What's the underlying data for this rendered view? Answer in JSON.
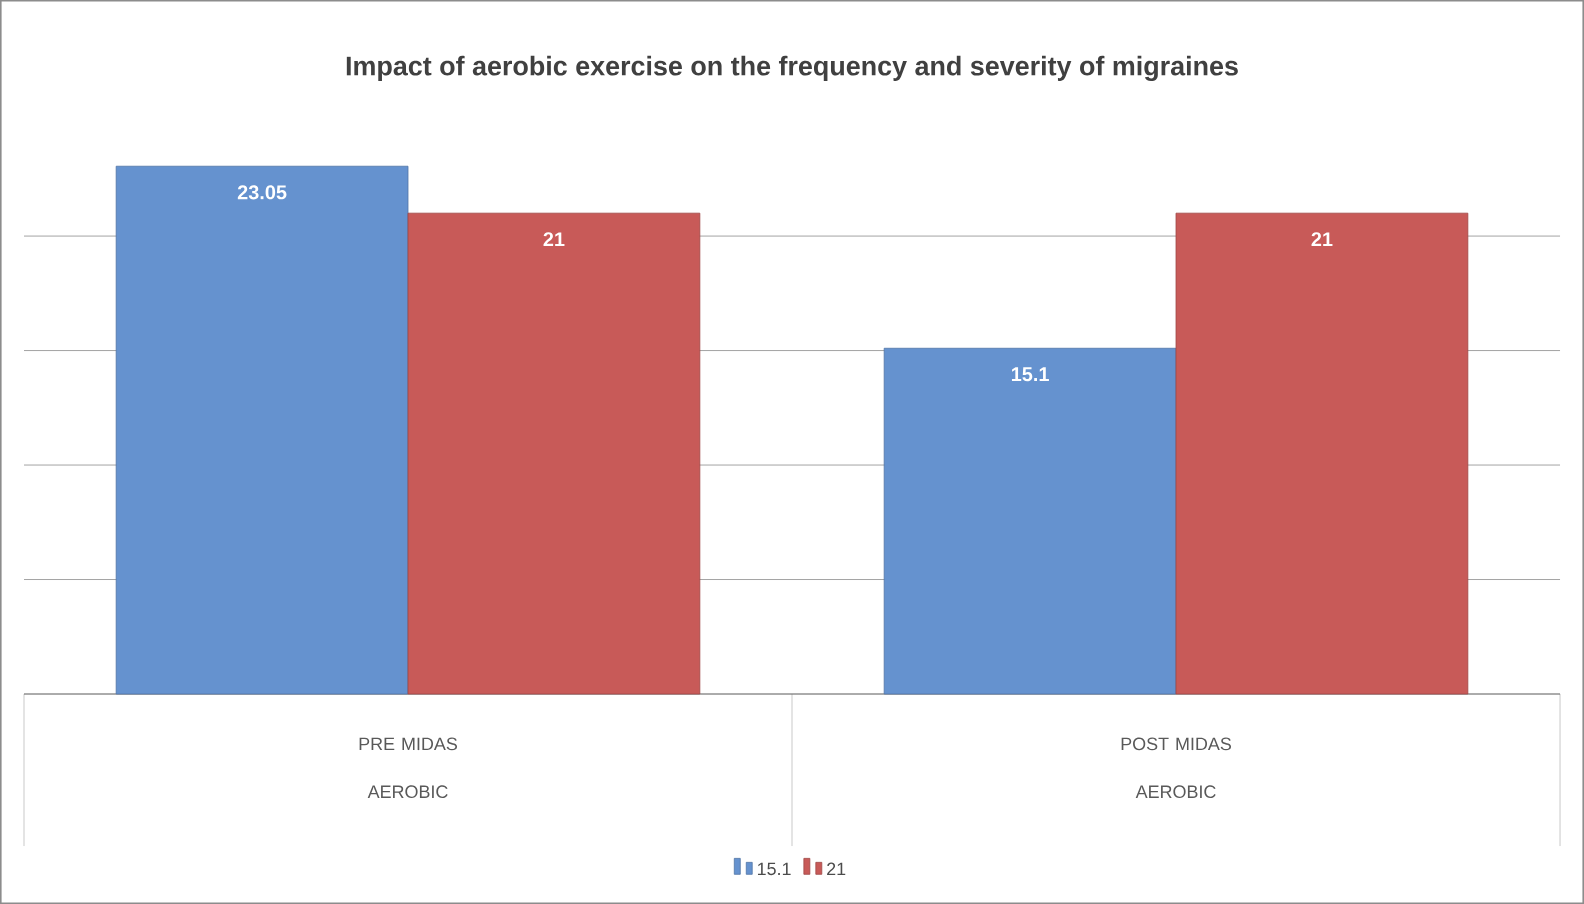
{
  "chart_data": {
    "type": "bar",
    "title": "Impact of aerobic exercise on the frequency and severity of migraines",
    "categories": [
      "PRE MIDAS AEROBIC",
      "POST MIDAS AEROBIC"
    ],
    "series": [
      {
        "name": "15.1",
        "color": "#6592cf",
        "values": [
          23.05,
          15.1
        ]
      },
      {
        "name": "21",
        "color": "#c85a58",
        "values": [
          21,
          21
        ]
      }
    ],
    "grid": "y",
    "tick_labels": "x",
    "data_labels": true,
    "legend": "bottom"
  }
}
